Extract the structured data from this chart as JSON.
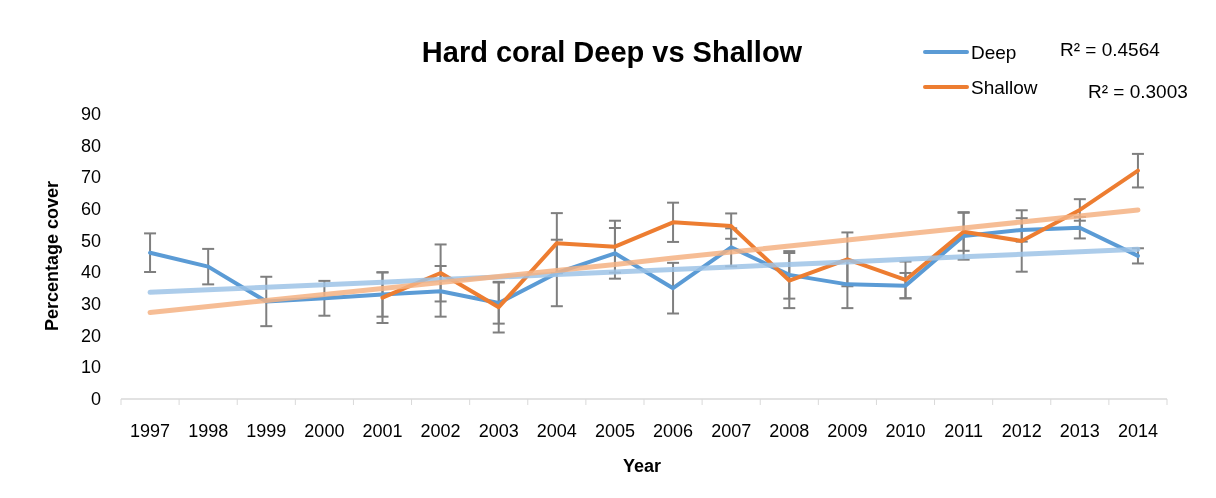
{
  "chart_data": {
    "type": "line",
    "title": "Hard coral Deep vs Shallow",
    "xlabel": "Year",
    "ylabel": "Percentage cover",
    "categories": [
      "1997",
      "1998",
      "1999",
      "2000",
      "2001",
      "2002",
      "2003",
      "2004",
      "2005",
      "2006",
      "2007",
      "2008",
      "2009",
      "2010",
      "2011",
      "2012",
      "2013",
      "2014"
    ],
    "ylim": [
      0,
      90
    ],
    "yticks": [
      0,
      10,
      20,
      30,
      40,
      50,
      60,
      70,
      80,
      90
    ],
    "grid": false,
    "legend": "top right",
    "marker": "none",
    "line_style": "solid",
    "series": [
      {
        "name": "Deep",
        "color": "#5b9bd5",
        "values": [
          46.2,
          41.8,
          30.8,
          31.8,
          33,
          34,
          30.3,
          39.8,
          46,
          35,
          47.9,
          39.2,
          36.2,
          35.8,
          51.5,
          53.4,
          54.1,
          45.2
        ],
        "errors": [
          6.1,
          5.6,
          7.8,
          5.5,
          7,
          8,
          6.5,
          10.5,
          8,
          8,
          6,
          7.5,
          7.5,
          4,
          7.5,
          3.7,
          3.4,
          2.4
        ]
      },
      {
        "name": "Shallow",
        "color": "#ed7d31",
        "values": [
          null,
          null,
          null,
          null,
          32,
          39.8,
          29,
          49.2,
          48.1,
          55.8,
          54.6,
          37.4,
          44.1,
          37.6,
          52.8,
          49.9,
          59.7,
          72.1
        ],
        "errors": [
          null,
          null,
          null,
          null,
          8,
          9,
          8,
          9.5,
          8.2,
          6.2,
          4,
          8.7,
          8.5,
          5.8,
          6,
          9.7,
          3.4,
          5.3
        ]
      },
      {
        "type": "line",
        "color": "#9dc3e6",
        "values": [
          33.7,
          34.5,
          35.3,
          36.1,
          36.9,
          37.7,
          38.5,
          39.3,
          40.1,
          40.9,
          41.7,
          42.5,
          43.3,
          44.1,
          44.9,
          45.7,
          46.5,
          47.3
        ]
      },
      {
        "type": "line",
        "color": "#f4b183",
        "values": [
          27.3,
          29.2,
          31.1,
          33.0,
          34.9,
          36.8,
          38.7,
          40.6,
          42.5,
          44.5,
          46.4,
          48.3,
          50.2,
          52.1,
          54.0,
          55.9,
          57.8,
          59.7
        ]
      }
    ],
    "annotations": [
      "R² = 0.4564",
      "R² = 0.3003"
    ]
  }
}
